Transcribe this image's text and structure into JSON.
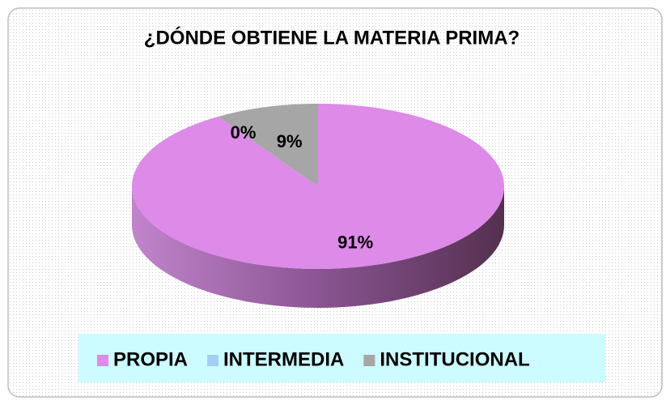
{
  "chart_data": {
    "type": "pie",
    "title": "¿DÓNDE OBTIENE LA MATERIA PRIMA?",
    "categories": [
      "PROPIA",
      "INTERMEDIA",
      "INSTITUCIONAL"
    ],
    "values": [
      91,
      0,
      9
    ],
    "value_labels": [
      "91%",
      "0%",
      "9%"
    ],
    "colors": [
      "#dd8ae9",
      "#a6cdf5",
      "#a6a6a6"
    ],
    "legend": "bottom"
  }
}
